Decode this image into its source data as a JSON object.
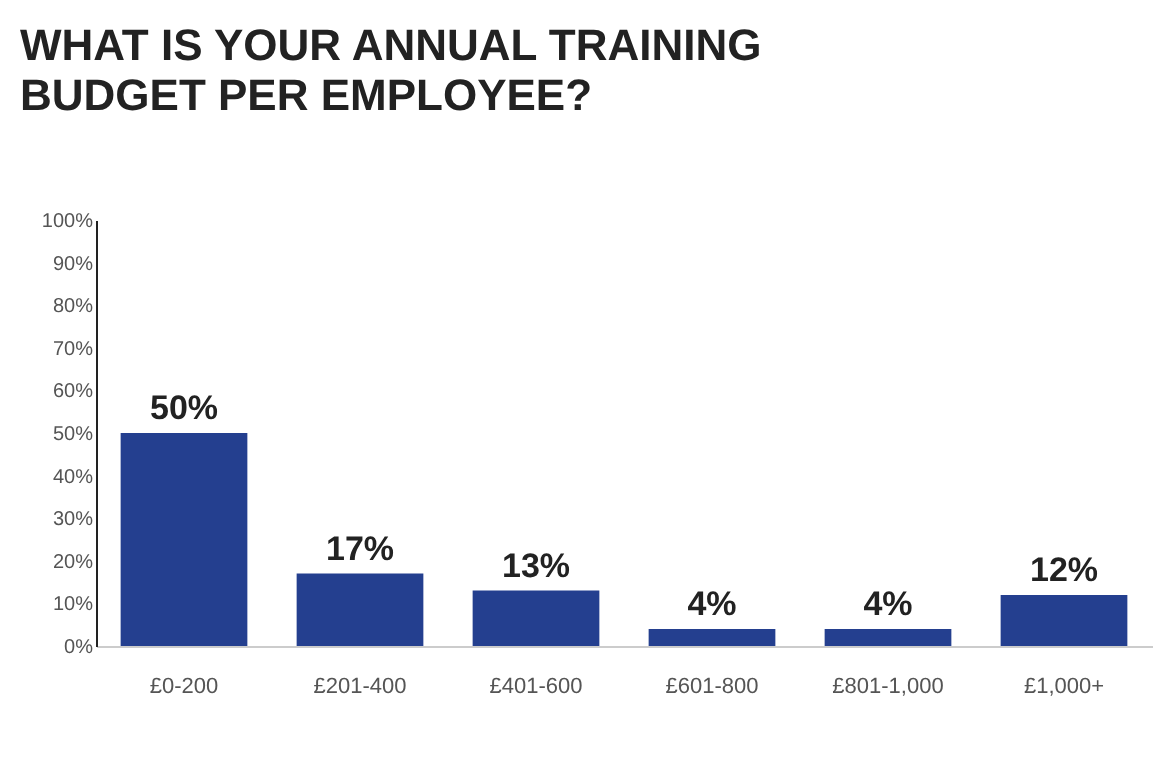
{
  "chart_data": {
    "type": "bar",
    "title": "WHAT IS YOUR ANNUAL TRAINING BUDGET PER EMPLOYEE?",
    "categories": [
      "£0-200",
      "£201-400",
      "£401-600",
      "£601-800",
      "£801-1,000",
      "£1,000+"
    ],
    "values": [
      50,
      17,
      13,
      4,
      4,
      12
    ],
    "value_labels": [
      "50%",
      "17%",
      "13%",
      "4%",
      "4%",
      "12%"
    ],
    "color": "#243f8f",
    "ylim": [
      0,
      100
    ],
    "yticks": [
      {
        "value": 0,
        "label": "0%"
      },
      {
        "value": 10,
        "label": "10%"
      },
      {
        "value": 20,
        "label": "20%"
      },
      {
        "value": 30,
        "label": "30%"
      },
      {
        "value": 40,
        "label": "40%"
      },
      {
        "value": 50,
        "label": "50%"
      },
      {
        "value": 60,
        "label": "60%"
      },
      {
        "value": 70,
        "label": "70%"
      },
      {
        "value": 80,
        "label": "80%"
      },
      {
        "value": 90,
        "label": "90%"
      },
      {
        "value": 100,
        "label": "100%"
      }
    ],
    "grid": false
  }
}
